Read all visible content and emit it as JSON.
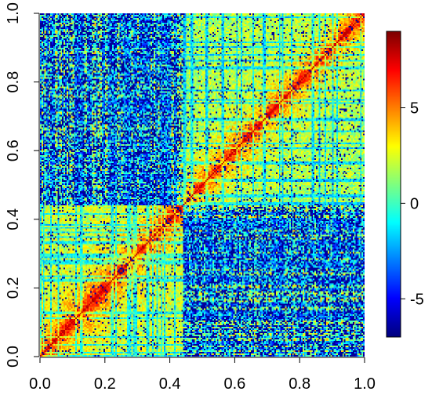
{
  "chart_data": {
    "type": "heatmap",
    "title": "",
    "xlabel": "",
    "ylabel": "",
    "xlim": [
      0.0,
      1.0
    ],
    "ylim": [
      0.0,
      1.0
    ],
    "x_ticks": [
      "0.0",
      "0.2",
      "0.4",
      "0.6",
      "0.8",
      "1.0"
    ],
    "y_ticks": [
      "0.0",
      "0.2",
      "0.4",
      "0.6",
      "0.8",
      "1.0"
    ],
    "x_tick_values": [
      0.0,
      0.2,
      0.4,
      0.6,
      0.8,
      1.0
    ],
    "y_tick_values": [
      0.0,
      0.2,
      0.4,
      0.6,
      0.8,
      1.0
    ],
    "colorbar": {
      "min": -7,
      "max": 9,
      "ticks": [
        -5,
        0,
        5
      ],
      "tick_labels": [
        "-5",
        "0",
        "5"
      ],
      "colors": [
        "#00007F",
        "#0000FF",
        "#007FFF",
        "#00FFFF",
        "#7FFF7F",
        "#FFFF00",
        "#FF7F00",
        "#FF0000",
        "#7F0000"
      ]
    },
    "matrix_resolution": 220,
    "symmetric": true,
    "block_boundary": 0.44,
    "value_summary": {
      "diagonal": 8,
      "within_lower_block": 2,
      "within_upper_block": 1.5,
      "between_blocks": -3
    },
    "grid": false,
    "legend": "colorbar-right"
  }
}
